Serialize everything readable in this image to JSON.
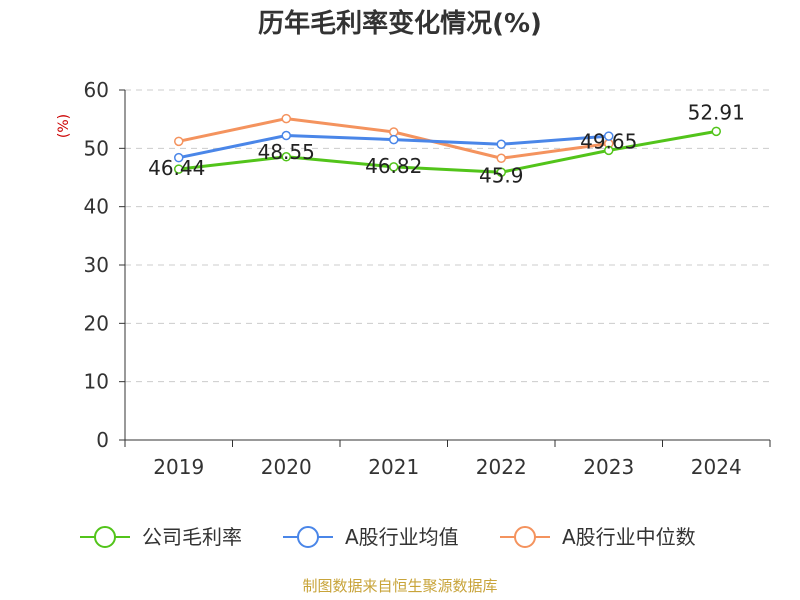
{
  "chart_data": {
    "type": "line",
    "title": "历年毛利率变化情况(%)",
    "ylabel": "(%)",
    "xlabel": "",
    "categories": [
      "2019",
      "2020",
      "2021",
      "2022",
      "2023",
      "2024"
    ],
    "ylim": [
      0,
      60
    ],
    "yticks": [
      0,
      10,
      20,
      30,
      40,
      50,
      60
    ],
    "grid": true,
    "legend_position": "bottom",
    "series": [
      {
        "name": "公司毛利率",
        "color": "#52c41a",
        "values": [
          46.44,
          48.55,
          46.82,
          45.9,
          49.65,
          52.91
        ],
        "labels": [
          "46.44",
          "48.55",
          "46.82",
          "45.9",
          "49.65",
          "52.91"
        ]
      },
      {
        "name": "A股行业均值",
        "color": "#4a86e8",
        "values": [
          48.4,
          52.2,
          51.5,
          50.7,
          52.1,
          null
        ],
        "labels": []
      },
      {
        "name": "A股行业中位数",
        "color": "#f4935e",
        "values": [
          51.2,
          55.1,
          52.8,
          48.3,
          50.8,
          null
        ],
        "labels": []
      }
    ]
  },
  "source": "制图数据来自恒生聚源数据库",
  "colors": {
    "ylabel": "#cc0000",
    "source": "#c8a43a",
    "grid": "#cccccc",
    "axis": "#333333"
  }
}
